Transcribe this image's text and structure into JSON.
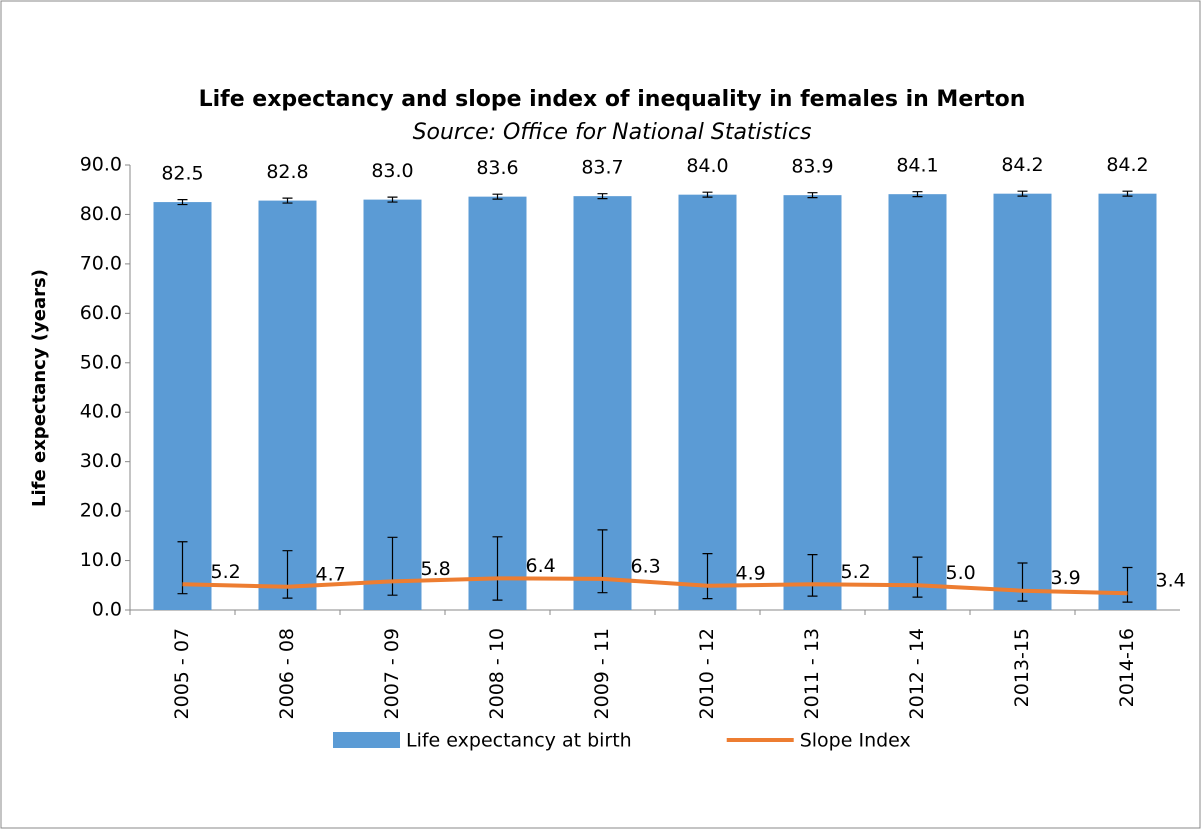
{
  "chart_data": {
    "type": "bar",
    "title": "Life expectancy and slope index of inequality in females in Merton",
    "subtitle": "Source: Office for National Statistics",
    "y_label": "Life expectancy (years)",
    "categories": [
      "2005 - 07",
      "2006 - 08",
      "2007 - 09",
      "2008 - 10",
      "2009 - 11",
      "2010 - 12",
      "2011 - 13",
      "2012 - 14",
      "2013-15",
      "2014-16"
    ],
    "series": [
      {
        "name": "Life expectancy at birth",
        "type": "bar",
        "color": "#5b9bd5",
        "values": [
          82.5,
          82.8,
          83.0,
          83.6,
          83.7,
          84.0,
          83.9,
          84.1,
          84.2,
          84.2
        ],
        "value_labels": [
          "82.5",
          "82.8",
          "83.0",
          "83.6",
          "83.7",
          "84.0",
          "83.9",
          "84.1",
          "84.2",
          "84.2"
        ],
        "lower": [
          82.0,
          82.3,
          82.5,
          83.1,
          83.2,
          83.5,
          83.4,
          83.6,
          83.7,
          83.7
        ],
        "upper": [
          83.0,
          83.3,
          83.5,
          84.1,
          84.2,
          84.5,
          84.4,
          84.6,
          84.7,
          84.7
        ]
      },
      {
        "name": "Slope Index",
        "type": "line",
        "color": "#ed7d31",
        "values": [
          5.2,
          4.7,
          5.8,
          6.4,
          6.3,
          4.9,
          5.2,
          5.0,
          3.9,
          3.4
        ],
        "value_labels": [
          "5.2",
          "4.7",
          "5.8",
          "6.4",
          "6.3",
          "4.9",
          "5.2",
          "5.0",
          "3.9",
          "3.4"
        ],
        "lower": [
          3.3,
          2.4,
          3.0,
          2.0,
          3.5,
          2.3,
          2.8,
          2.6,
          1.8,
          1.6
        ],
        "upper": [
          13.8,
          12.0,
          14.7,
          14.8,
          16.2,
          11.4,
          11.2,
          10.7,
          9.5,
          8.6
        ]
      }
    ],
    "ylim": [
      0,
      90
    ],
    "yticks": [
      {
        "value": 0,
        "label": "0.0"
      },
      {
        "value": 10,
        "label": "10.0"
      },
      {
        "value": 20,
        "label": "20.0"
      },
      {
        "value": 30,
        "label": "30.0"
      },
      {
        "value": 40,
        "label": "40.0"
      },
      {
        "value": 50,
        "label": "50.0"
      },
      {
        "value": 60,
        "label": "60.0"
      },
      {
        "value": 70,
        "label": "70.0"
      },
      {
        "value": 80,
        "label": "80.0"
      },
      {
        "value": 90,
        "label": "90.0"
      }
    ],
    "grid": false,
    "legend": "bottom"
  }
}
